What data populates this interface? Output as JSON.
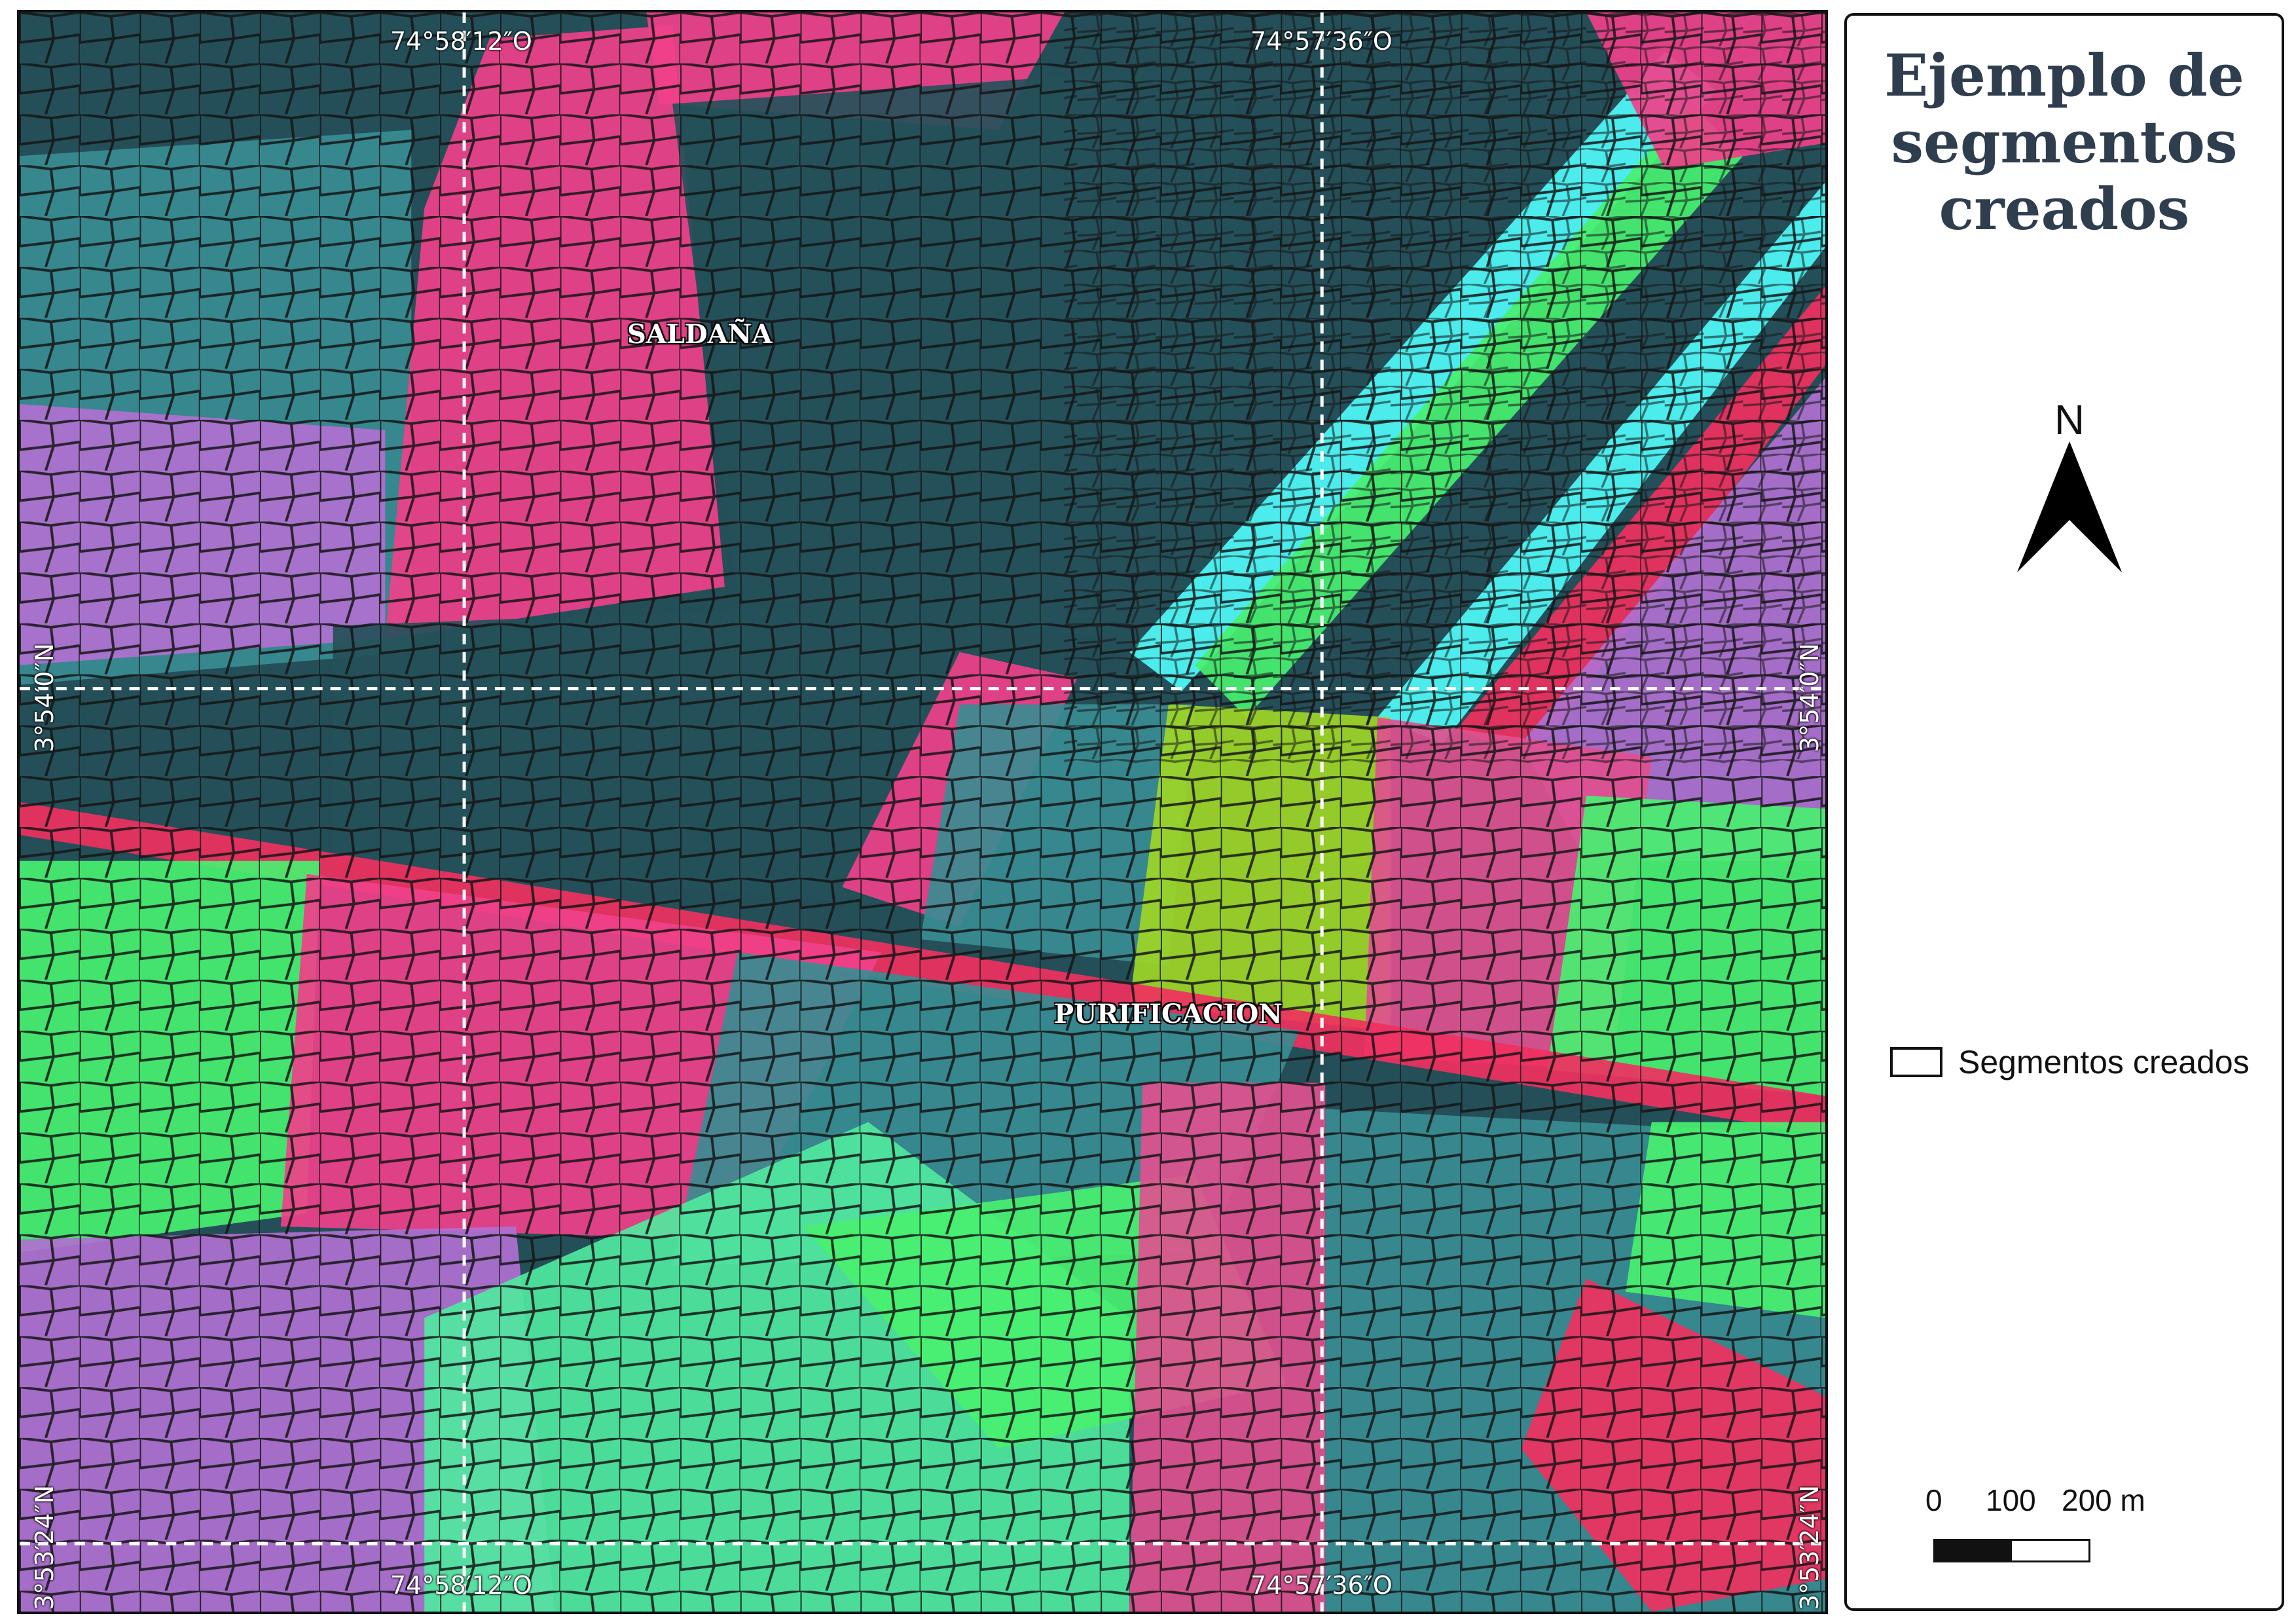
{
  "map": {
    "coordinates": {
      "lon_west": "74°58′12″O",
      "lon_east": "74°57′36″O",
      "lat_north": "3°54′0″N",
      "lat_south": "3°53′24″N"
    },
    "places": {
      "saldana": "SALDAÑA",
      "purificacion": "PURIFICACION"
    },
    "colors": {
      "pink": "#f0408a",
      "magenta": "#e0508f",
      "teal_dark": "#25505a",
      "teal": "#3a8c92",
      "cyan": "#50f8f8",
      "green_bright": "#48f070",
      "green_yellow": "#9ed626",
      "mint": "#50e8a0",
      "violet": "#b070d0",
      "red": "#f03060",
      "segment_line": "#1a1a1a",
      "graticule": "#ffffff"
    }
  },
  "legend": {
    "title": "Ejemplo de segmentos creados",
    "north_label": "N",
    "item_label": "Segmentos creados",
    "scale_ticks": [
      "0",
      "100",
      "200 m"
    ]
  }
}
